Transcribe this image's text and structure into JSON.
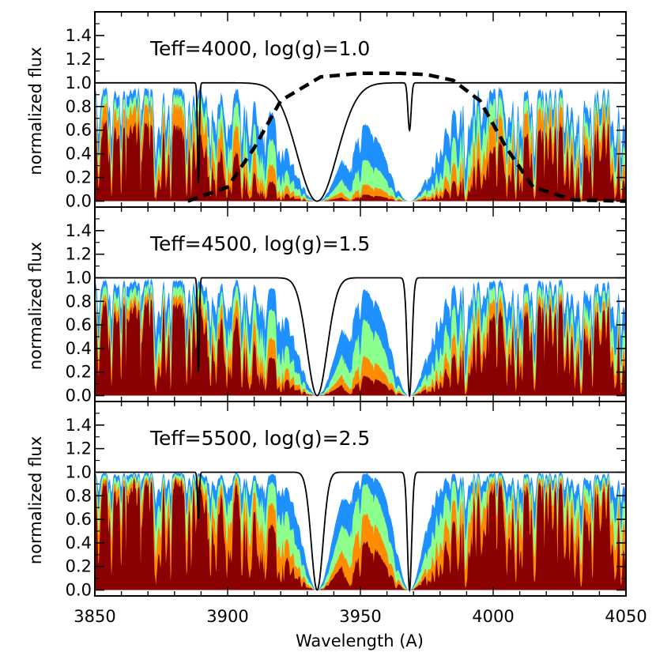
{
  "chart_data": {
    "type": "area",
    "xlabel": "Wavelength (A)",
    "xlim": [
      3850,
      4050
    ],
    "x_ticks": [
      3850,
      3900,
      3950,
      4000,
      4050
    ],
    "ylabel": "normalized flux",
    "ylim": [
      -0.05,
      1.6
    ],
    "y_ticks": [
      0.0,
      0.2,
      0.4,
      0.6,
      0.8,
      1.0,
      1.2,
      1.4
    ],
    "y_tick_labels": [
      "0.0",
      "0.2",
      "0.4",
      "0.6",
      "0.8",
      "1.0",
      "1.2",
      "1.4"
    ],
    "colors": {
      "blue": "#1e90ff",
      "green": "#8dff8d",
      "orange": "#ff8c00",
      "darkred": "#8b0000",
      "continuum": "#000000"
    },
    "line_centers": [
      3889.0,
      3933.7,
      3968.5
    ],
    "panels": [
      {
        "title": "Teff=4000, log(g)=1.0",
        "continuum_core_depth": {
          "H8": 0.15,
          "CaK": 0.0,
          "CaH_Heps": 0.6
        },
        "filter_curve": {
          "style": "dashed",
          "x": [
            3885,
            3900,
            3910,
            3920,
            3935,
            3950,
            3965,
            3975,
            3985,
            3995,
            4005,
            4015,
            4030,
            4050
          ],
          "y": [
            0.0,
            0.12,
            0.45,
            0.85,
            1.05,
            1.08,
            1.08,
            1.07,
            1.02,
            0.85,
            0.45,
            0.12,
            0.01,
            0.0
          ]
        },
        "series": [
          {
            "color": "blue",
            "continuum_level": 0.97,
            "metal_line_strength": 0.35
          },
          {
            "color": "green",
            "continuum_level": 0.92,
            "metal_line_strength": 0.55
          },
          {
            "color": "orange",
            "continuum_level": 0.85,
            "metal_line_strength": 0.75
          },
          {
            "color": "darkred",
            "continuum_level": 0.7,
            "metal_line_strength": 0.95
          }
        ]
      },
      {
        "title": "Teff=4500, log(g)=1.5",
        "continuum_core_depth": {
          "H8": 0.2,
          "CaK": 0.0,
          "CaH_Heps": 0.0
        },
        "series": [
          {
            "color": "blue",
            "continuum_level": 0.99,
            "metal_line_strength": 0.25
          },
          {
            "color": "green",
            "continuum_level": 0.95,
            "metal_line_strength": 0.45
          },
          {
            "color": "orange",
            "continuum_level": 0.88,
            "metal_line_strength": 0.65
          },
          {
            "color": "darkred",
            "continuum_level": 0.82,
            "metal_line_strength": 0.85
          }
        ]
      },
      {
        "title": "Teff=5500, log(g)=2.5",
        "continuum_core_depth": {
          "H8": 0.6,
          "CaK": 0.0,
          "CaH_Heps": 0.0
        },
        "series": [
          {
            "color": "blue",
            "continuum_level": 1.0,
            "metal_line_strength": 0.12
          },
          {
            "color": "green",
            "continuum_level": 0.99,
            "metal_line_strength": 0.25
          },
          {
            "color": "orange",
            "continuum_level": 0.97,
            "metal_line_strength": 0.45
          },
          {
            "color": "darkred",
            "continuum_level": 0.95,
            "metal_line_strength": 0.8
          }
        ]
      }
    ]
  }
}
